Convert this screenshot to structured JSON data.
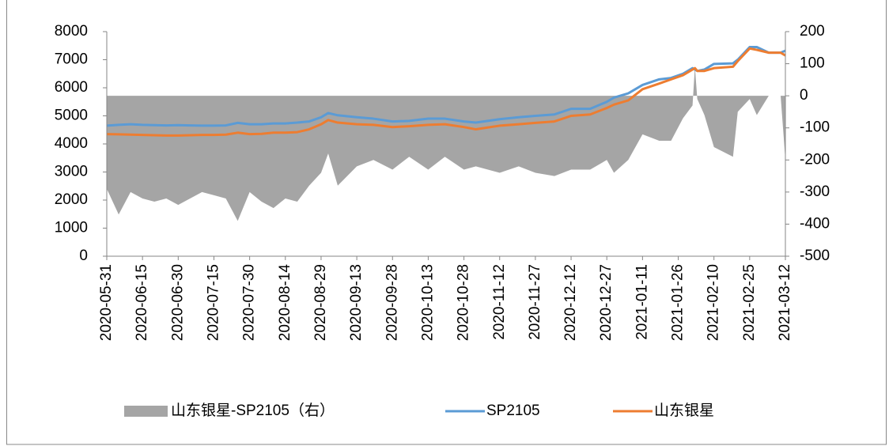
{
  "chart_data": {
    "type": "area_line",
    "x": [
      "2020-05-31",
      "2020-06-05",
      "2020-06-10",
      "2020-06-15",
      "2020-06-20",
      "2020-06-25",
      "2020-06-30",
      "2020-07-05",
      "2020-07-10",
      "2020-07-15",
      "2020-07-20",
      "2020-07-25",
      "2020-07-30",
      "2020-08-04",
      "2020-08-09",
      "2020-08-14",
      "2020-08-19",
      "2020-08-24",
      "2020-08-29",
      "2020-09-01",
      "2020-09-05",
      "2020-09-13",
      "2020-09-20",
      "2020-09-28",
      "2020-10-05",
      "2020-10-13",
      "2020-10-20",
      "2020-10-28",
      "2020-11-02",
      "2020-11-12",
      "2020-11-20",
      "2020-11-27",
      "2020-12-05",
      "2020-12-12",
      "2020-12-20",
      "2020-12-27",
      "2020-12-30",
      "2021-01-05",
      "2021-01-11",
      "2021-01-18",
      "2021-01-23",
      "2021-01-28",
      "2021-02-01",
      "2021-02-02",
      "2021-02-03",
      "2021-02-06",
      "2021-02-10",
      "2021-02-18",
      "2021-02-20",
      "2021-02-25",
      "2021-02-28",
      "2021-03-05",
      "2021-03-10",
      "2021-03-12"
    ],
    "series": [
      {
        "name": "山东银星-SP2105（右）",
        "color": "#a5a5a5",
        "axis": "y2",
        "kind": "area",
        "values": [
          -290,
          -370,
          -300,
          -320,
          -330,
          -320,
          -340,
          -320,
          -300,
          -310,
          -320,
          -390,
          -300,
          -330,
          -350,
          -320,
          -330,
          -280,
          -240,
          -180,
          -280,
          -220,
          -200,
          -230,
          -190,
          -230,
          -190,
          -230,
          -220,
          -240,
          -220,
          -240,
          -250,
          -230,
          -230,
          -200,
          -240,
          -200,
          -120,
          -140,
          -140,
          -70,
          -30,
          90,
          -10,
          -60,
          -160,
          -190,
          -50,
          -10,
          -60,
          0,
          0,
          -200
        ]
      },
      {
        "name": "SP2105",
        "color": "#5b9bd5",
        "kind": "line",
        "values": [
          4650,
          4680,
          4700,
          4680,
          4670,
          4660,
          4670,
          4660,
          4650,
          4650,
          4660,
          4750,
          4700,
          4700,
          4730,
          4730,
          4760,
          4800,
          4950,
          5100,
          5020,
          4950,
          4900,
          4800,
          4820,
          4900,
          4900,
          4800,
          4760,
          4880,
          4950,
          5000,
          5050,
          5250,
          5250,
          5500,
          5650,
          5800,
          6100,
          6300,
          6350,
          6500,
          6700,
          6650,
          6600,
          6650,
          6850,
          6870,
          7000,
          7450,
          7450,
          7250,
          7250,
          7320
        ]
      },
      {
        "name": "山东银星",
        "color": "#ed7d31",
        "kind": "line",
        "values": [
          4350,
          4340,
          4330,
          4320,
          4310,
          4300,
          4300,
          4310,
          4320,
          4320,
          4330,
          4400,
          4350,
          4360,
          4400,
          4400,
          4420,
          4520,
          4700,
          4850,
          4760,
          4700,
          4680,
          4600,
          4630,
          4680,
          4700,
          4600,
          4520,
          4650,
          4700,
          4750,
          4800,
          5000,
          5050,
          5280,
          5400,
          5550,
          5950,
          6150,
          6300,
          6450,
          6650,
          6700,
          6600,
          6600,
          6700,
          6750,
          6950,
          7400,
          7350,
          7250,
          7250,
          7150
        ]
      }
    ],
    "xlim": [
      "2020-05-31",
      "2021-03-12"
    ],
    "xticks": [
      "2020-05-31",
      "2020-06-15",
      "2020-06-30",
      "2020-07-15",
      "2020-07-30",
      "2020-08-14",
      "2020-08-29",
      "2020-09-13",
      "2020-09-28",
      "2020-10-13",
      "2020-10-28",
      "2020-11-12",
      "2020-11-27",
      "2020-12-12",
      "2020-12-27",
      "2021-01-11",
      "2021-01-26",
      "2021-02-10",
      "2021-02-25",
      "2021-03-12"
    ],
    "ylim": [
      0,
      8000
    ],
    "yticks": [
      0,
      1000,
      2000,
      3000,
      4000,
      5000,
      6000,
      7000,
      8000
    ],
    "y2lim": [
      -500,
      200
    ],
    "y2ticks": [
      -500,
      -400,
      -300,
      -200,
      -100,
      0,
      100,
      200
    ],
    "legend": "bottom"
  }
}
